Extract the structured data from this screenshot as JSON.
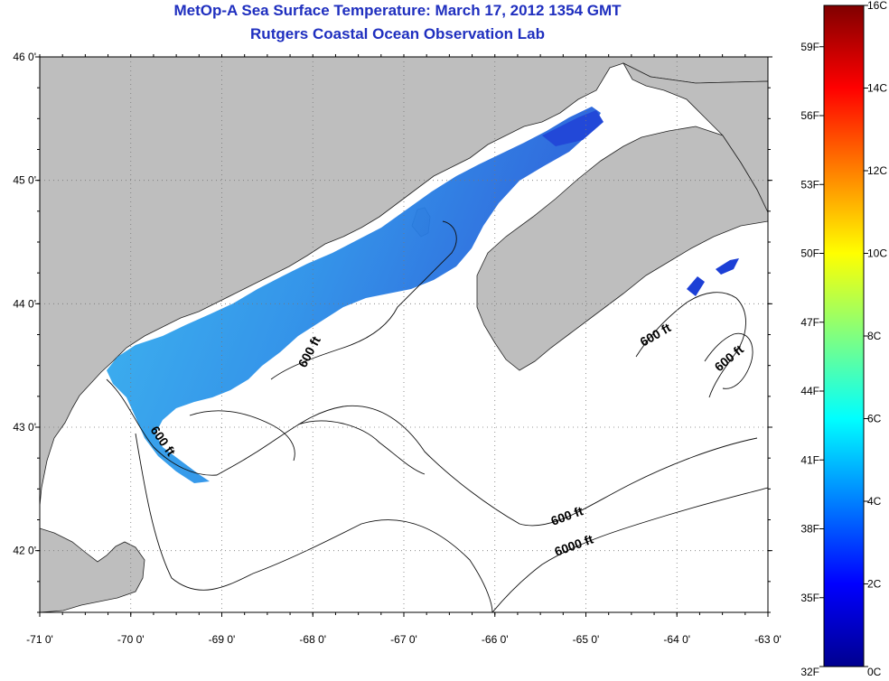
{
  "header": {
    "title": "MetOp-A Sea Surface Temperature:  March 17, 2012 1354 GMT",
    "subtitle": "Rutgers Coastal Ocean Observation Lab"
  },
  "map": {
    "lon_ticks": [
      "-71 0'",
      "-70 0'",
      "-69 0'",
      "-68 0'",
      "-67 0'",
      "-66 0'",
      "-65 0'",
      "-64 0'",
      "-63 0'"
    ],
    "lat_ticks": [
      "46 0'",
      "45 0'",
      "44 0'",
      "43 0'",
      "42 0'"
    ],
    "contour_labels": [
      "600 ft",
      "600 ft",
      "600 ft",
      "600 ft",
      "600 ft",
      "6000 ft"
    ],
    "colors": {
      "land": "#bebebe",
      "water_nodata": "#ffffff",
      "sst_cold": "#1e73e6",
      "sst_warm": "#35b6f0"
    }
  },
  "colorbar": {
    "celsius_labels": [
      "16C",
      "14C",
      "12C",
      "10C",
      "8C",
      "6C",
      "4C",
      "2C",
      "0C"
    ],
    "fahrenheit_labels": [
      "59F",
      "56F",
      "53F",
      "50F",
      "47F",
      "44F",
      "41F",
      "38F",
      "35F",
      "32F"
    ],
    "stops": [
      "#00008f",
      "#0000ff",
      "#0080ff",
      "#00ffff",
      "#80ff80",
      "#ffff00",
      "#ff8000",
      "#ff0000",
      "#800000"
    ]
  }
}
